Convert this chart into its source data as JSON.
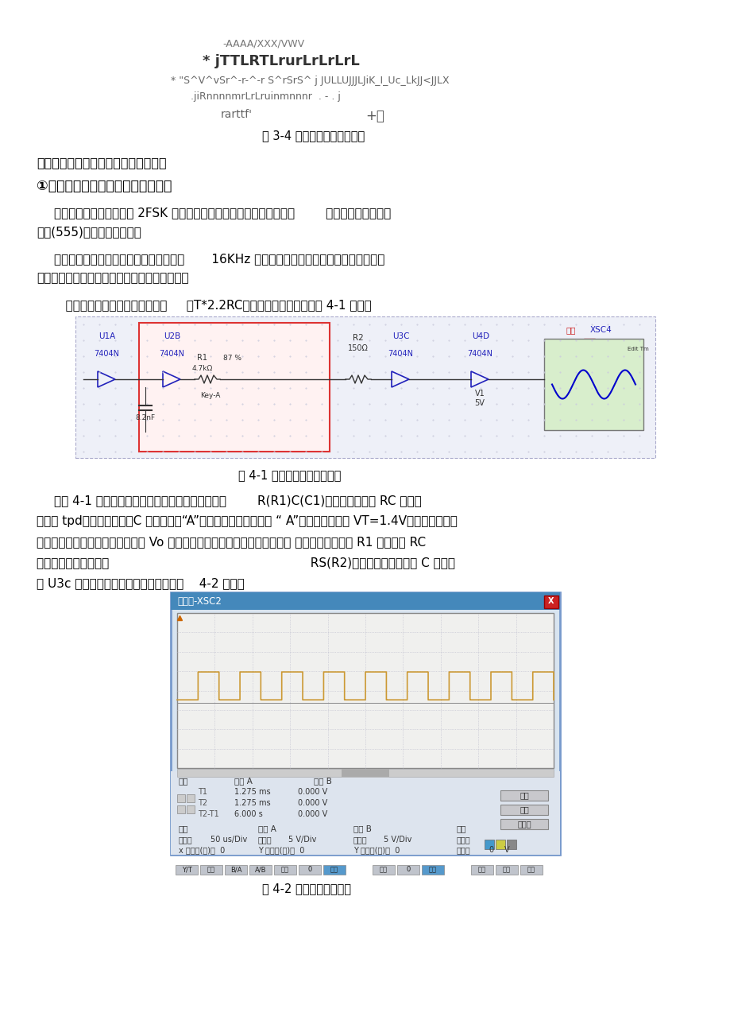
{
  "bg_color": "#ffffff",
  "title_top": "-AAAA/XXX/VWV",
  "title_line2": "* jTTLRTLrurLrLrLrL",
  "title_line3": "* \"S^V^vSr^-r-^-r S^rSrS^ j JULLUJJJLJiK_I_Uc_LkJJ<JJLX",
  "title_line4": ".jiRnnnnmrLrLruinmnnnr  . - . j",
  "title_line5_left": "rarttf'",
  "title_line5_right": "+山",
  "fig_caption_1": "图 3-4 过零检测电路信号波形",
  "section_title": "四、系统中各种单元电路设计以及仿真",
  "subsection_title": "①主载波振荡器电路设计与工作原理",
  "para1_line1": "载波振荡器的功用是提供 2FSK 调制系统所需的载波和信码定时信号，        它可用门电路或集成",
  "para1_line2": "电路(555)构成多谐振荡器。",
  "para2_line1": "本实验系统要求产生的主载波振荡频率为       16KHz 载波，要求输出频率可调。为简化实验电",
  "para2_line2": "路，本次实验系统选用门电路构成多谐振荡器。",
  "para3": "   已知该门电路的估算振荡周期是     ：T*2.2RC。经计算其实际电路如图 4-1 所示：",
  "fig_caption_2": "图 4-1 主载波振荡器电原理图",
  "para4_line1": "由图 4-1 电路可知，在三个与非门之间加入了一个        R(R1)C(C1)延时网络，由于 RC 较大，",
  "para4_line2": "可忽略 tpd。接通电源时，C 的充放电使“A”点电压发生变化。每当 “ A”点到达阈値电压 VT=1.4V时，电路就会翳",
  "para4_line3": "转，电路不停的自动翳转，就会在 Vo 端输出一系列的矩形脉冲，即电路产生 了振荡。并且调整 R1 可以改变 RC",
  "para4_line4": "値，使振荡频率改变。                                                    RS(R2)起隔离作用，把电容 C 的输出",
  "para4_line5": "与 U3c 的输入隔离开。电路振荡波形如图    4-2 所示：",
  "fig_caption_3": "图 4-2 主载波信号波形图"
}
